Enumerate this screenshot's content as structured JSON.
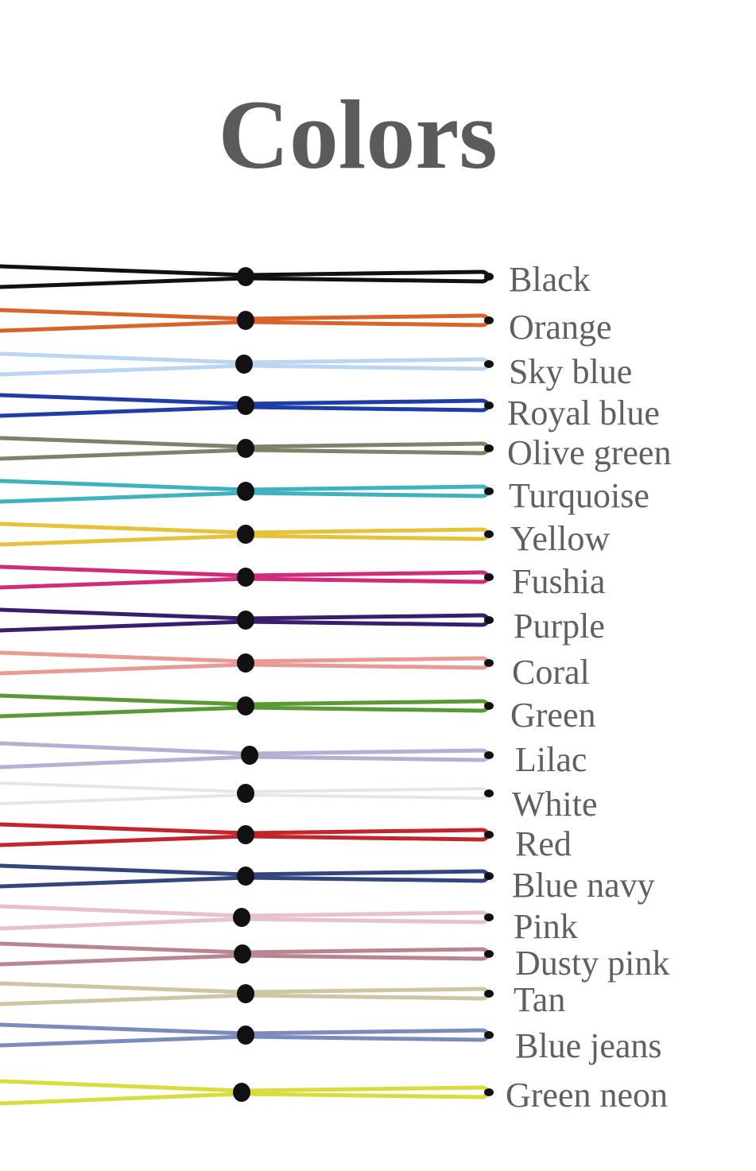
{
  "title": "Colors",
  "colors": [
    {
      "name": "Black",
      "hex": "#111111"
    },
    {
      "name": "Orange",
      "hex": "#d8642c"
    },
    {
      "name": "Sky blue",
      "hex": "#bcd6f2"
    },
    {
      "name": "Royal blue",
      "hex": "#1f3da6"
    },
    {
      "name": "Olive green",
      "hex": "#7b8468"
    },
    {
      "name": "Turquoise",
      "hex": "#3fb1bf"
    },
    {
      "name": "Yellow",
      "hex": "#e6c23a"
    },
    {
      "name": "Fushia",
      "hex": "#d12c7a"
    },
    {
      "name": "Purple",
      "hex": "#3a1e6e"
    },
    {
      "name": "Coral",
      "hex": "#e89a94"
    },
    {
      "name": "Green",
      "hex": "#5a9a34"
    },
    {
      "name": "Lilac",
      "hex": "#b8aed2"
    },
    {
      "name": "White",
      "hex": "#f0f0f0"
    },
    {
      "name": "Red",
      "hex": "#c2262a"
    },
    {
      "name": "Blue navy",
      "hex": "#34477c"
    },
    {
      "name": "Pink",
      "hex": "#e7c2cc"
    },
    {
      "name": "Dusty pink",
      "hex": "#b98690"
    },
    {
      "name": "Tan",
      "hex": "#cdc6a4"
    },
    {
      "name": "Blue jeans",
      "hex": "#7b8bbc"
    },
    {
      "name": "Green neon",
      "hex": "#d8dc3c"
    }
  ]
}
